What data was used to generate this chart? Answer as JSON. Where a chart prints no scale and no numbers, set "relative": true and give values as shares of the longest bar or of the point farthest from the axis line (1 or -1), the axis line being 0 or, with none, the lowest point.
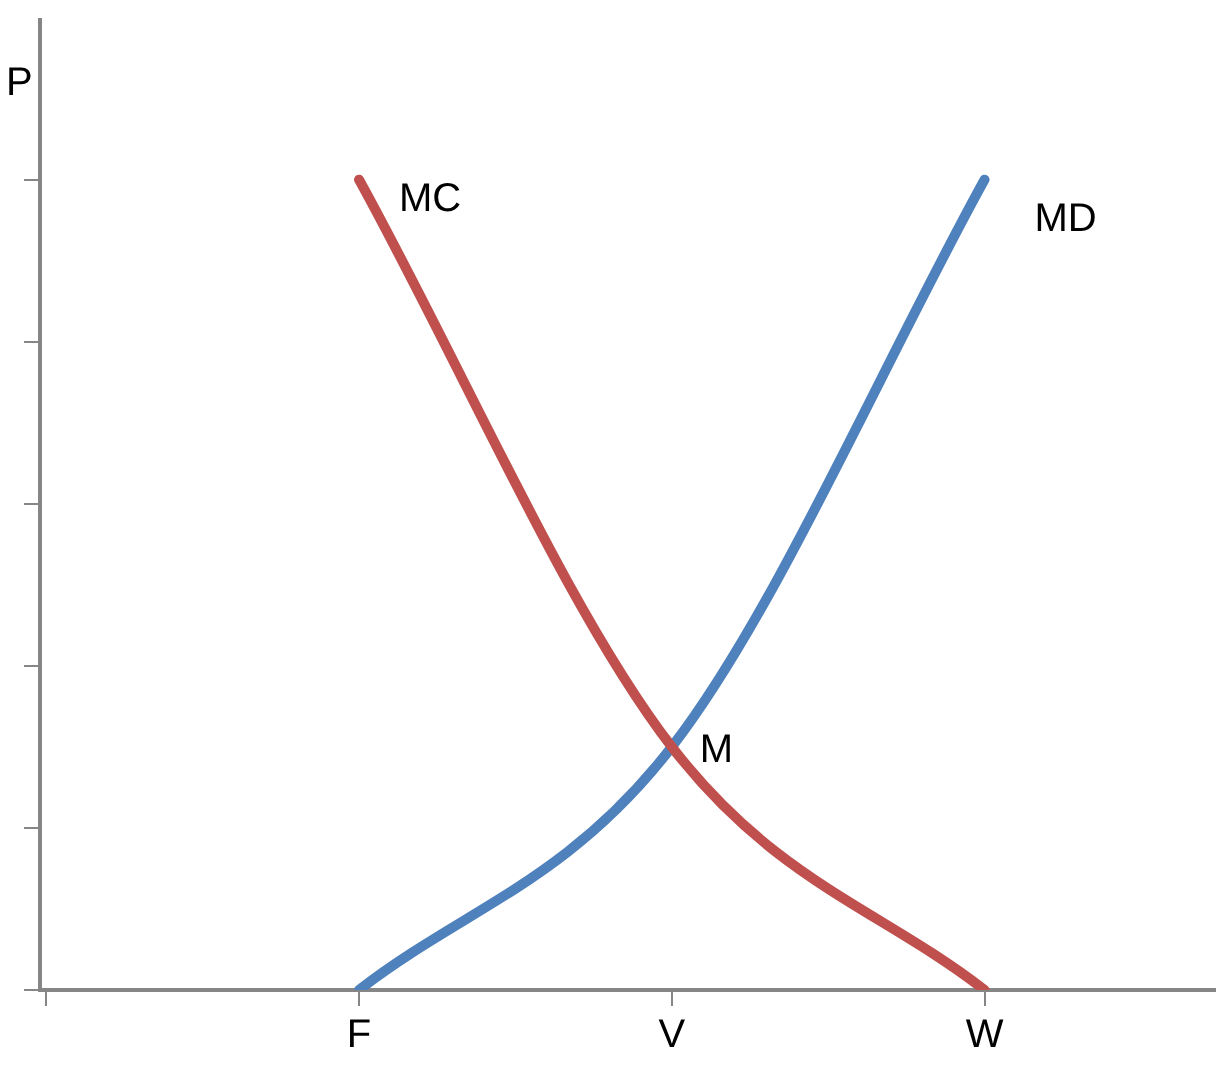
{
  "chart_data": {
    "type": "line",
    "relative": true,
    "ylabel": "P",
    "categories": [
      null,
      "F",
      "V",
      "W"
    ],
    "series": [
      {
        "name": "MC",
        "color": "#c0504d",
        "values": [
          null,
          1,
          0.3,
          0
        ]
      },
      {
        "name": "MD",
        "color": "#4f81bd",
        "values": [
          null,
          0,
          0.3,
          1
        ]
      }
    ],
    "annotations": [
      {
        "text": "M",
        "x": "V",
        "y": 0.3
      }
    ],
    "grid": false,
    "legend": false,
    "marker": "none",
    "line_style": "solid"
  }
}
